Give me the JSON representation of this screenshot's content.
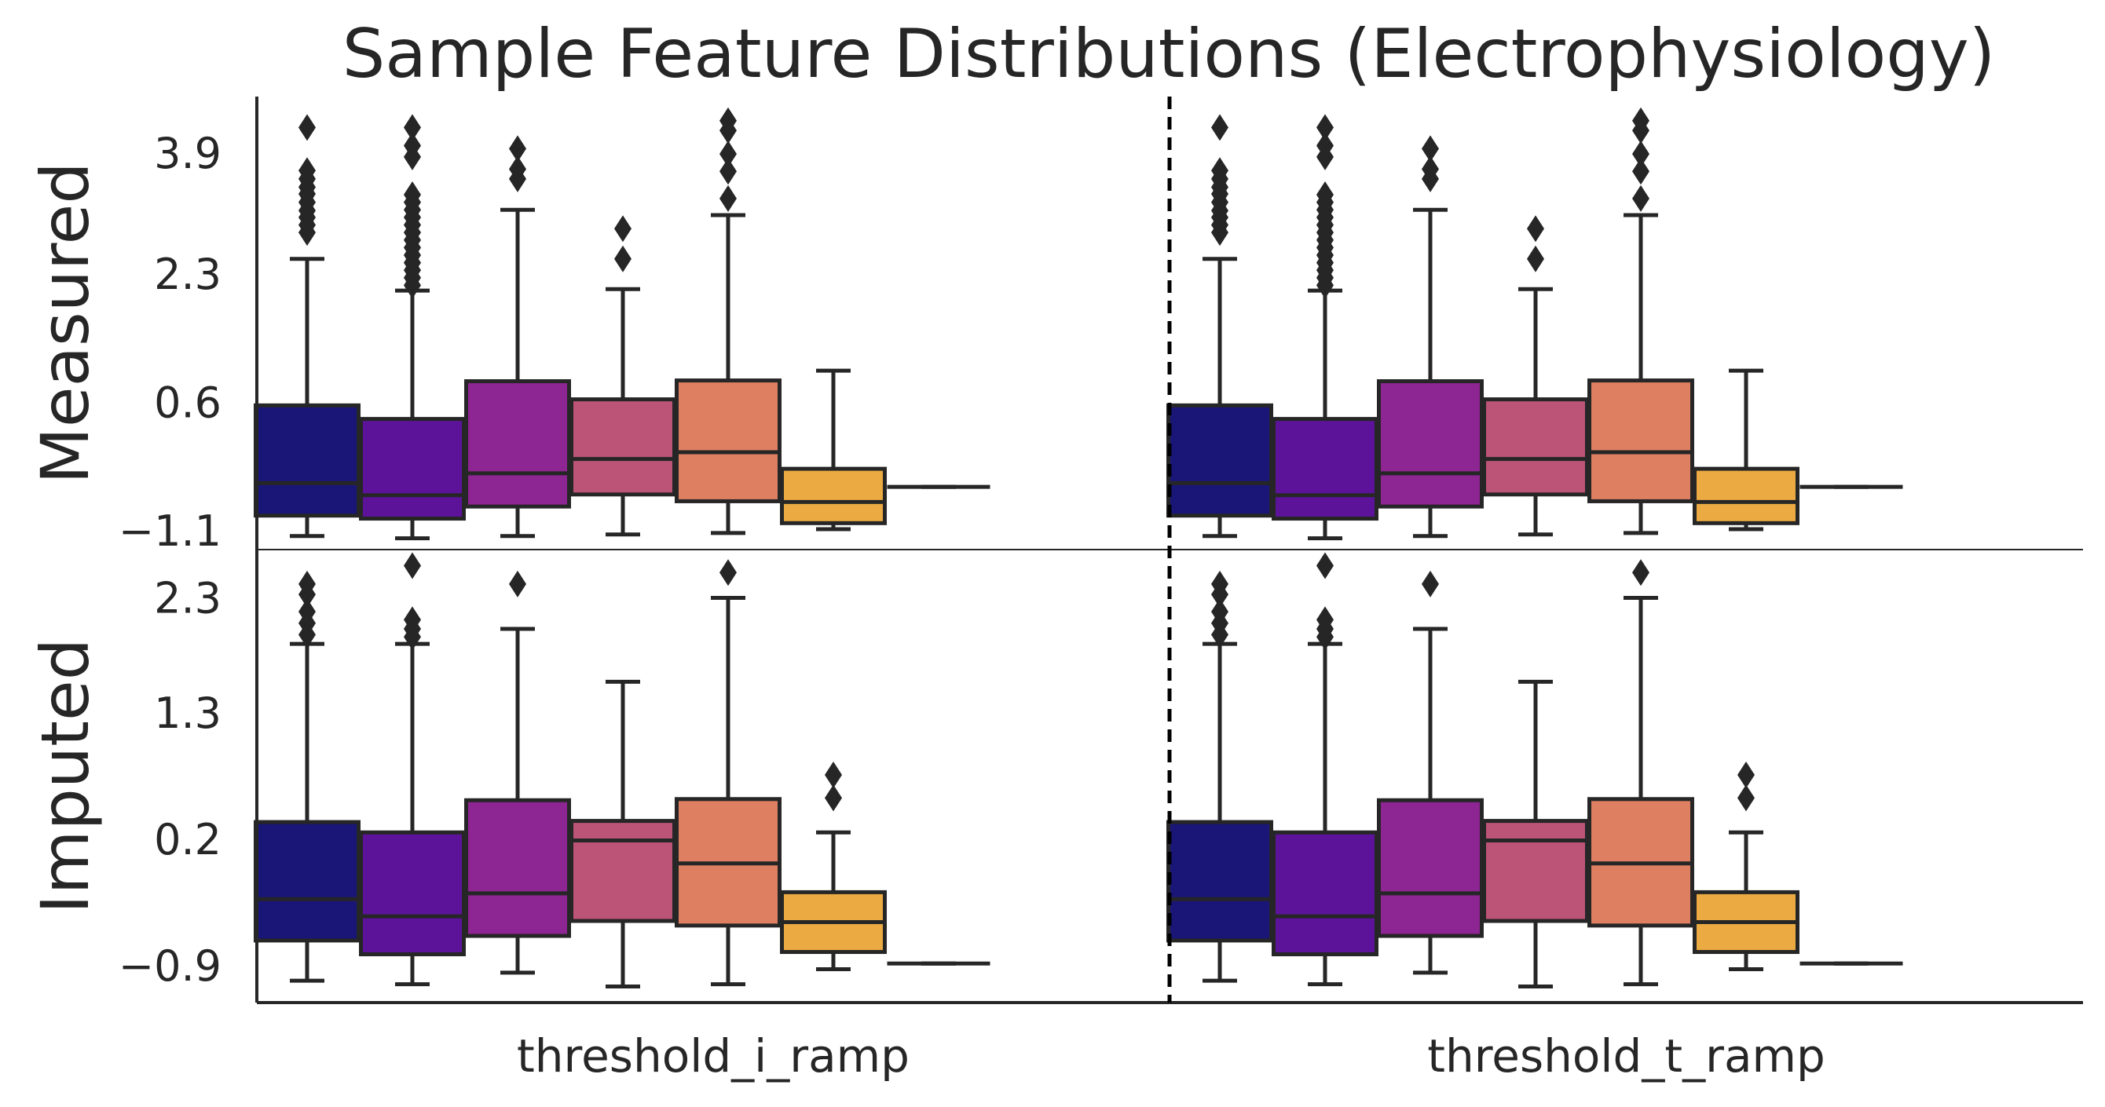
{
  "chart_data": {
    "type": "box",
    "title": "Sample Feature Distributions (Electrophysiology)",
    "x_categories": [
      "threshold_i_ramp",
      "threshold_t_ramp"
    ],
    "rows": [
      {
        "label": "Measured",
        "yticks": [
          "3.9",
          "2.3",
          "0.6",
          "−1.1"
        ],
        "ytick_values": [
          3.9,
          2.3,
          0.6,
          -1.1
        ],
        "ylim": [
          -1.35,
          4.65
        ],
        "panels": [
          {
            "category": "threshold_i_ramp",
            "boxes": [
              {
                "q1": -0.9,
                "median": -0.47,
                "q3": 0.56,
                "whislo": -1.17,
                "whishi": 2.5,
                "fliers": [
                  4.24,
                  3.67,
                  3.56,
                  3.45,
                  3.36,
                  3.25,
                  3.14,
                  3.05,
                  2.95,
                  2.85
                ]
              },
              {
                "q1": -0.94,
                "median": -0.63,
                "q3": 0.38,
                "whislo": -1.2,
                "whishi": 2.08,
                "fliers": [
                  4.24,
                  4.0,
                  3.85,
                  3.35,
                  3.25,
                  3.15,
                  3.05,
                  2.95,
                  2.85,
                  2.75,
                  2.65,
                  2.55,
                  2.45,
                  2.35,
                  2.25,
                  2.15
                ]
              },
              {
                "q1": -0.78,
                "median": -0.34,
                "q3": 0.88,
                "whislo": -1.17,
                "whishi": 3.15,
                "fliers": [
                  3.96,
                  3.69,
                  3.56
                ]
              },
              {
                "q1": -0.62,
                "median": -0.15,
                "q3": 0.64,
                "whislo": -1.15,
                "whishi": 2.1,
                "fliers": [
                  2.9,
                  2.5
                ]
              },
              {
                "q1": -0.71,
                "median": -0.06,
                "q3": 0.89,
                "whislo": -1.13,
                "whishi": 3.08,
                "fliers": [
                  4.33,
                  4.2,
                  3.89,
                  3.66,
                  3.3
                ]
              },
              {
                "q1": -1.0,
                "median": -0.72,
                "q3": -0.28,
                "whislo": -1.08,
                "whishi": 1.02,
                "fliers": []
              },
              {
                "q1": -0.52,
                "median": -0.52,
                "q3": -0.52,
                "whislo": -0.52,
                "whishi": -0.52,
                "fliers": []
              }
            ]
          },
          {
            "category": "threshold_t_ramp",
            "boxes": [
              {
                "q1": -0.9,
                "median": -0.47,
                "q3": 0.56,
                "whislo": -1.17,
                "whishi": 2.5,
                "fliers": [
                  4.24,
                  3.67,
                  3.56,
                  3.45,
                  3.36,
                  3.25,
                  3.14,
                  3.05,
                  2.95,
                  2.85
                ]
              },
              {
                "q1": -0.94,
                "median": -0.63,
                "q3": 0.38,
                "whislo": -1.2,
                "whishi": 2.08,
                "fliers": [
                  4.24,
                  4.0,
                  3.85,
                  3.35,
                  3.25,
                  3.15,
                  3.05,
                  2.95,
                  2.85,
                  2.75,
                  2.65,
                  2.55,
                  2.45,
                  2.35,
                  2.25,
                  2.15
                ]
              },
              {
                "q1": -0.78,
                "median": -0.34,
                "q3": 0.88,
                "whislo": -1.17,
                "whishi": 3.15,
                "fliers": [
                  3.96,
                  3.69,
                  3.56
                ]
              },
              {
                "q1": -0.62,
                "median": -0.15,
                "q3": 0.64,
                "whislo": -1.15,
                "whishi": 2.1,
                "fliers": [
                  2.9,
                  2.5
                ]
              },
              {
                "q1": -0.71,
                "median": -0.06,
                "q3": 0.89,
                "whislo": -1.13,
                "whishi": 3.08,
                "fliers": [
                  4.33,
                  4.2,
                  3.89,
                  3.66,
                  3.3
                ]
              },
              {
                "q1": -1.0,
                "median": -0.72,
                "q3": -0.28,
                "whislo": -1.08,
                "whishi": 1.02,
                "fliers": []
              },
              {
                "q1": -0.52,
                "median": -0.52,
                "q3": -0.52,
                "whislo": -0.52,
                "whishi": -0.52,
                "fliers": []
              }
            ]
          }
        ]
      },
      {
        "label": "Imputed",
        "yticks": [
          "2.3",
          "1.3",
          "0.2",
          "−0.9"
        ],
        "ytick_values": [
          2.3,
          1.3,
          0.2,
          -0.9
        ],
        "ylim": [
          -1.22,
          2.72
        ],
        "panels": [
          {
            "category": "threshold_i_ramp",
            "boxes": [
              {
                "q1": -0.68,
                "median": -0.32,
                "q3": 0.35,
                "whislo": -1.03,
                "whishi": 1.9,
                "fliers": [
                  2.42,
                  2.33,
                  2.18,
                  2.08,
                  1.98
                ]
              },
              {
                "q1": -0.8,
                "median": -0.47,
                "q3": 0.26,
                "whislo": -1.06,
                "whishi": 1.9,
                "fliers": [
                  2.58,
                  2.11,
                  2.03,
                  1.96
                ]
              },
              {
                "q1": -0.64,
                "median": -0.27,
                "q3": 0.54,
                "whislo": -0.96,
                "whishi": 2.03,
                "fliers": [
                  2.42
                ]
              },
              {
                "q1": -0.51,
                "median": 0.19,
                "q3": 0.36,
                "whislo": -1.08,
                "whishi": 1.57,
                "fliers": []
              },
              {
                "q1": -0.55,
                "median": -0.01,
                "q3": 0.55,
                "whislo": -1.06,
                "whishi": 2.3,
                "fliers": [
                  2.52
                ]
              },
              {
                "q1": -0.78,
                "median": -0.52,
                "q3": -0.26,
                "whislo": -0.93,
                "whishi": 0.26,
                "fliers": [
                  0.76,
                  0.56
                ]
              },
              {
                "q1": -0.88,
                "median": -0.88,
                "q3": -0.88,
                "whislo": -0.88,
                "whishi": -0.88,
                "fliers": []
              }
            ]
          },
          {
            "category": "threshold_t_ramp",
            "boxes": [
              {
                "q1": -0.68,
                "median": -0.32,
                "q3": 0.35,
                "whislo": -1.03,
                "whishi": 1.9,
                "fliers": [
                  2.42,
                  2.33,
                  2.18,
                  2.08,
                  1.98
                ]
              },
              {
                "q1": -0.8,
                "median": -0.47,
                "q3": 0.26,
                "whislo": -1.06,
                "whishi": 1.9,
                "fliers": [
                  2.58,
                  2.11,
                  2.03,
                  1.96
                ]
              },
              {
                "q1": -0.64,
                "median": -0.27,
                "q3": 0.54,
                "whislo": -0.96,
                "whishi": 2.03,
                "fliers": [
                  2.42
                ]
              },
              {
                "q1": -0.51,
                "median": 0.19,
                "q3": 0.36,
                "whislo": -1.08,
                "whishi": 1.57,
                "fliers": []
              },
              {
                "q1": -0.55,
                "median": -0.01,
                "q3": 0.55,
                "whislo": -1.06,
                "whishi": 2.3,
                "fliers": [
                  2.52
                ]
              },
              {
                "q1": -0.78,
                "median": -0.52,
                "q3": -0.26,
                "whislo": -0.93,
                "whishi": 0.26,
                "fliers": [
                  0.76,
                  0.56
                ]
              },
              {
                "q1": -0.88,
                "median": -0.88,
                "q3": -0.88,
                "whislo": -0.88,
                "whishi": -0.88,
                "fliers": []
              }
            ]
          }
        ]
      }
    ],
    "palette": [
      "#1a1678",
      "#5c1399",
      "#8d2592",
      "#bc5478",
      "#dd7f60",
      "#ebaa42",
      "#f0c93a"
    ],
    "line_color": "#262626",
    "separator": "dashed-vertical-between-categories",
    "grid": false,
    "legend": "none"
  }
}
